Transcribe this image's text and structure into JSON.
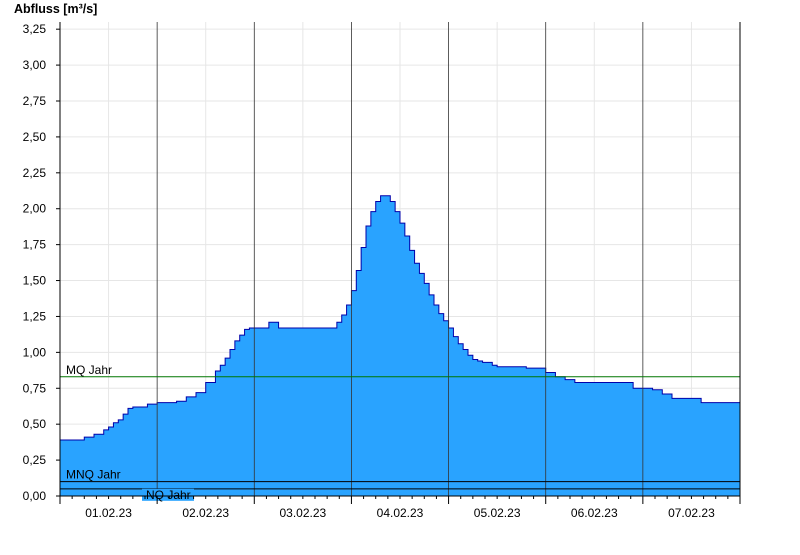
{
  "chart_data": {
    "type": "area",
    "ylabel": "Abfluss [m³/s]",
    "ylim": [
      0,
      3.3
    ],
    "grid": true,
    "yticks": [
      "0,00",
      "0,25",
      "0,50",
      "0,75",
      "1,00",
      "1,25",
      "1,50",
      "1,75",
      "2,00",
      "2,25",
      "2,50",
      "2,75",
      "3,00",
      "3,25"
    ],
    "ytick_values": [
      0,
      0.25,
      0.5,
      0.75,
      1.0,
      1.25,
      1.5,
      1.75,
      2.0,
      2.25,
      2.5,
      2.75,
      3.0,
      3.25
    ],
    "xticks": [
      "01.02.23",
      "02.02.23",
      "03.02.23",
      "04.02.23",
      "05.02.23",
      "06.02.23",
      "07.02.23"
    ],
    "xlim_days": [
      0,
      7
    ],
    "colors": {
      "area": "#29a3ff",
      "area_outline": "#0000aa",
      "mq_line": "#007700",
      "nq_line": "#000000"
    },
    "reference_lines": [
      {
        "label": "MQ Jahr",
        "value": 0.83
      },
      {
        "label": "MNQ Jahr",
        "value": 0.1
      },
      {
        "label": "NQ Jahr",
        "value": 0.05
      }
    ],
    "series": [
      {
        "x_days": [
          0,
          0.2,
          0.25,
          0.35,
          0.45,
          0.5,
          0.55,
          0.6,
          0.65,
          0.7,
          0.75,
          0.8,
          0.85,
          0.9,
          1.0,
          1.1,
          1.2,
          1.3,
          1.4,
          1.5,
          1.6,
          1.65,
          1.7,
          1.75,
          1.8,
          1.85,
          1.9,
          1.95,
          2.0,
          2.05,
          2.1,
          2.15,
          2.2,
          2.25,
          2.3,
          2.35,
          2.4,
          2.5,
          2.6,
          2.7,
          2.8,
          2.85,
          2.9,
          2.95,
          3.0,
          3.05,
          3.1,
          3.15,
          3.2,
          3.25,
          3.3,
          3.35,
          3.4,
          3.45,
          3.5,
          3.55,
          3.6,
          3.65,
          3.7,
          3.75,
          3.8,
          3.85,
          3.9,
          3.95,
          4.0,
          4.05,
          4.1,
          4.15,
          4.2,
          4.25,
          4.3,
          4.35,
          4.4,
          4.45,
          4.5,
          4.6,
          4.7,
          4.8,
          5.0,
          5.1,
          5.2,
          5.3,
          5.4,
          5.5,
          5.6,
          5.7,
          5.8,
          5.9,
          6.0,
          6.1,
          6.2,
          6.3,
          6.4,
          6.5,
          6.6,
          6.7,
          6.8,
          6.9,
          7.0
        ],
        "y": [
          0.39,
          0.39,
          0.41,
          0.43,
          0.46,
          0.48,
          0.51,
          0.53,
          0.57,
          0.61,
          0.62,
          0.62,
          0.62,
          0.64,
          0.65,
          0.65,
          0.66,
          0.69,
          0.72,
          0.79,
          0.87,
          0.91,
          0.96,
          1.02,
          1.08,
          1.12,
          1.16,
          1.17,
          1.17,
          1.17,
          1.17,
          1.21,
          1.21,
          1.17,
          1.17,
          1.17,
          1.17,
          1.17,
          1.17,
          1.17,
          1.17,
          1.21,
          1.26,
          1.33,
          1.43,
          1.57,
          1.73,
          1.88,
          1.98,
          2.05,
          2.09,
          2.09,
          2.05,
          1.98,
          1.9,
          1.81,
          1.71,
          1.62,
          1.55,
          1.48,
          1.4,
          1.33,
          1.27,
          1.22,
          1.17,
          1.11,
          1.06,
          1.02,
          0.98,
          0.95,
          0.94,
          0.93,
          0.93,
          0.91,
          0.9,
          0.9,
          0.9,
          0.89,
          0.86,
          0.83,
          0.81,
          0.79,
          0.79,
          0.79,
          0.79,
          0.79,
          0.79,
          0.75,
          0.75,
          0.74,
          0.71,
          0.68,
          0.68,
          0.68,
          0.65,
          0.65,
          0.65,
          0.65,
          0.61
        ]
      }
    ]
  }
}
